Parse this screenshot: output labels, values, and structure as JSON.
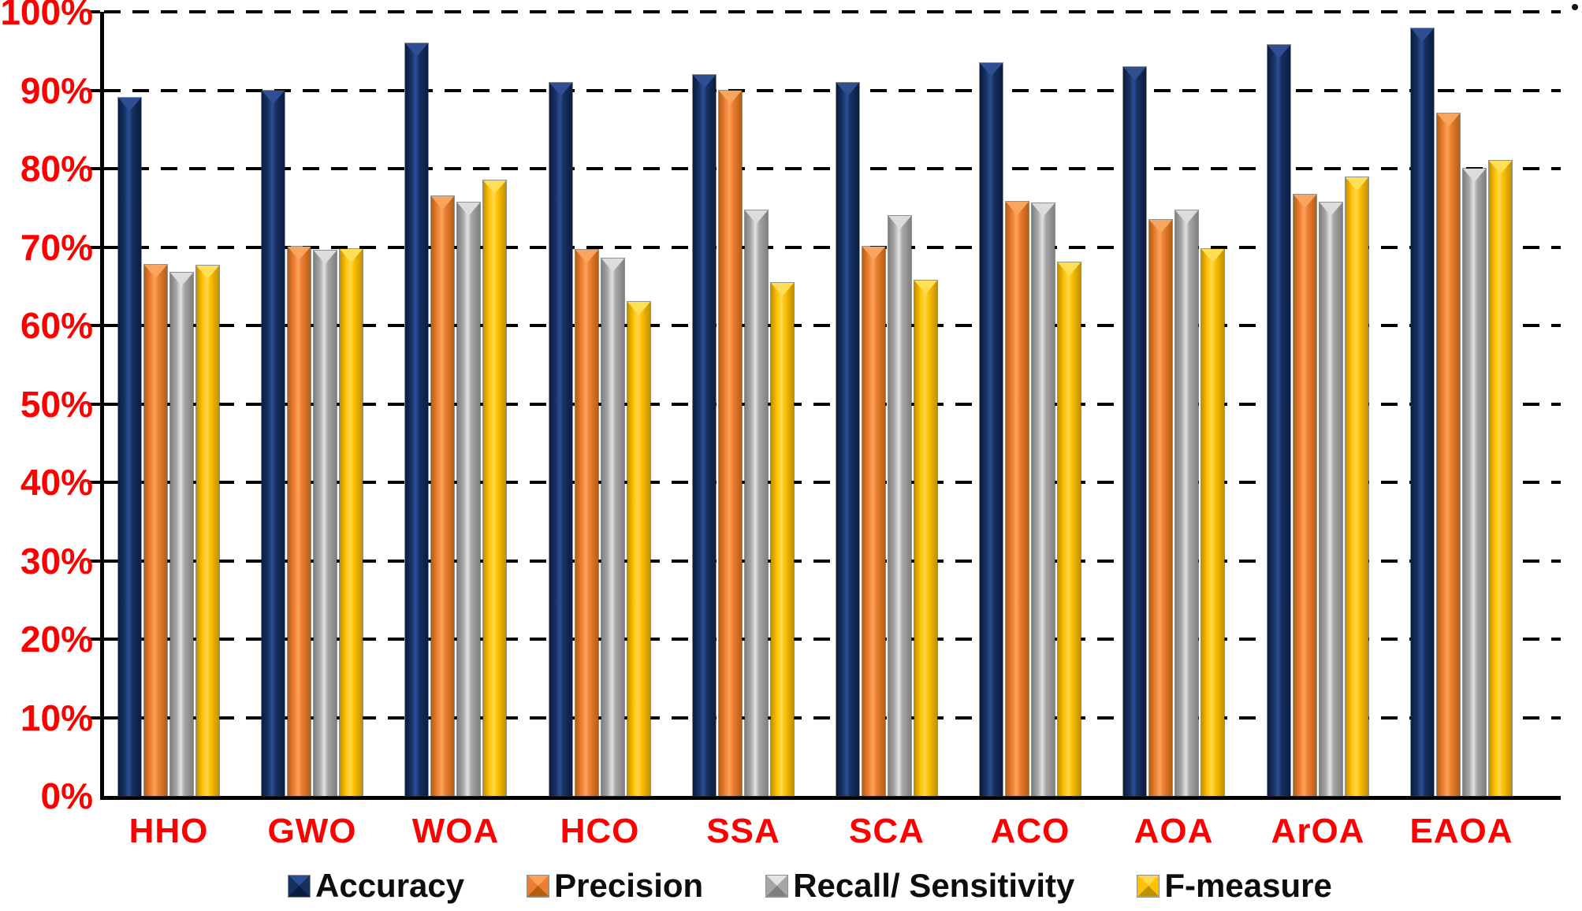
{
  "chart_data": {
    "type": "bar",
    "title": "",
    "xlabel": "",
    "ylabel": "",
    "categories": [
      "HHO",
      "GWO",
      "WOA",
      "HCO",
      "SSA",
      "SCA",
      "ACO",
      "AOA",
      "ArOA",
      "EAOA"
    ],
    "series": [
      {
        "name": "Accuracy",
        "color": "#16305F",
        "color_dark": "#0a1c42",
        "color_light": "#2a4d97",
        "cap_color": "#2f4f93",
        "values": [
          89,
          90,
          96,
          91,
          92,
          91,
          93.5,
          93,
          95.8,
          97.9
        ]
      },
      {
        "name": "Precision",
        "color": "#ED7D31",
        "color_dark": "#b35f12",
        "color_light": "#fba35c",
        "cap_color": "#f8a55f",
        "values": [
          67.7,
          70,
          76.5,
          69.6,
          90,
          70,
          75.8,
          73.5,
          76.7,
          87
        ]
      },
      {
        "name": "Recall/ Sensitivity",
        "color": "#A6A6A6",
        "color_dark": "#7f7f7f",
        "color_light": "#e3e3e3",
        "cap_color": "#dcdcdc",
        "values": [
          66.7,
          69.5,
          75.7,
          68.5,
          74.7,
          74,
          75.6,
          74.7,
          75.7,
          80
        ]
      },
      {
        "name": "F-measure",
        "color": "#FFC000",
        "color_dark": "#bf9000",
        "color_light": "#ffd84d",
        "cap_color": "#ffdf55",
        "values": [
          67.6,
          69.7,
          78.5,
          63,
          65.4,
          65.7,
          68,
          69.7,
          78.9,
          81
        ]
      }
    ],
    "ylim": [
      0,
      100
    ],
    "ytick_labels": [
      "0%",
      "10%",
      "20%",
      "30%",
      "40%",
      "50%",
      "60%",
      "70%",
      "80%",
      "90%",
      "100%"
    ],
    "ytick_values": [
      0,
      10,
      20,
      30,
      40,
      50,
      60,
      70,
      80,
      90,
      100
    ],
    "grid": "horizontal-dashed-black",
    "legend_position": "bottom",
    "axis_label_color": "#FF0000",
    "legend_text_color": "#0d0d0d",
    "gridline_color": "#000000"
  }
}
